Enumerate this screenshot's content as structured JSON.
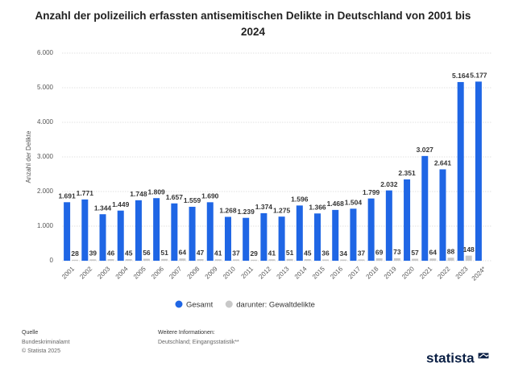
{
  "chart_data": {
    "type": "bar",
    "title": "Anzahl der polizeilich erfassten antisemitischen Delikte in Deutschland von 2001 bis 2024",
    "y_label": "Anzahl der Delikte",
    "categories": [
      "2001",
      "2002",
      "2003",
      "2004",
      "2005",
      "2006",
      "2007",
      "2008",
      "2009",
      "2010",
      "2011",
      "2012",
      "2013",
      "2014",
      "2015",
      "2016",
      "2017",
      "2018",
      "2019",
      "2020",
      "2021",
      "2022",
      "2023",
      "2024*"
    ],
    "series": [
      {
        "name": "Gesamt",
        "color": "#1f66e5",
        "values": [
          1691,
          1771,
          1344,
          1449,
          1748,
          1809,
          1657,
          1559,
          1690,
          1268,
          1239,
          1374,
          1275,
          1596,
          1366,
          1468,
          1504,
          1799,
          2032,
          2351,
          3027,
          2641,
          5164,
          5177
        ],
        "value_labels": [
          "1.691",
          "1.771",
          "1.344",
          "1.449",
          "1.748",
          "1.809",
          "1.657",
          "1.559",
          "1.690",
          "1.268",
          "1.239",
          "1.374",
          "1.275",
          "1.596",
          "1.366",
          "1.468",
          "1.504",
          "1.799",
          "2.032",
          "2.351",
          "3.027",
          "2.641",
          "5.164",
          "5.177"
        ]
      },
      {
        "name": "darunter: Gewaltdelikte",
        "color": "#c8c8c8",
        "values": [
          28,
          39,
          46,
          45,
          56,
          51,
          64,
          47,
          41,
          37,
          29,
          41,
          51,
          45,
          36,
          34,
          37,
          69,
          73,
          57,
          64,
          88,
          148,
          null
        ]
      }
    ],
    "ylim": [
      0,
      6000
    ],
    "yticks": [
      0,
      {
        "value": 1000,
        "label": "1.000"
      },
      {
        "value": 2000,
        "label": "2.000"
      },
      {
        "value": 3000,
        "label": "3.000"
      },
      {
        "value": 4000,
        "label": "4.000"
      },
      {
        "value": 5000,
        "label": "5.000"
      },
      {
        "value": 6000,
        "label": "6.000"
      }
    ],
    "grid": true
  },
  "footer": {
    "source_heading": "Quelle",
    "source": "Bundeskriminalamt",
    "copyright": "© Statista 2025",
    "info_heading": "Weitere Informationen:",
    "info": "Deutschland; Eingangsstatistik**",
    "logo": "statista"
  }
}
